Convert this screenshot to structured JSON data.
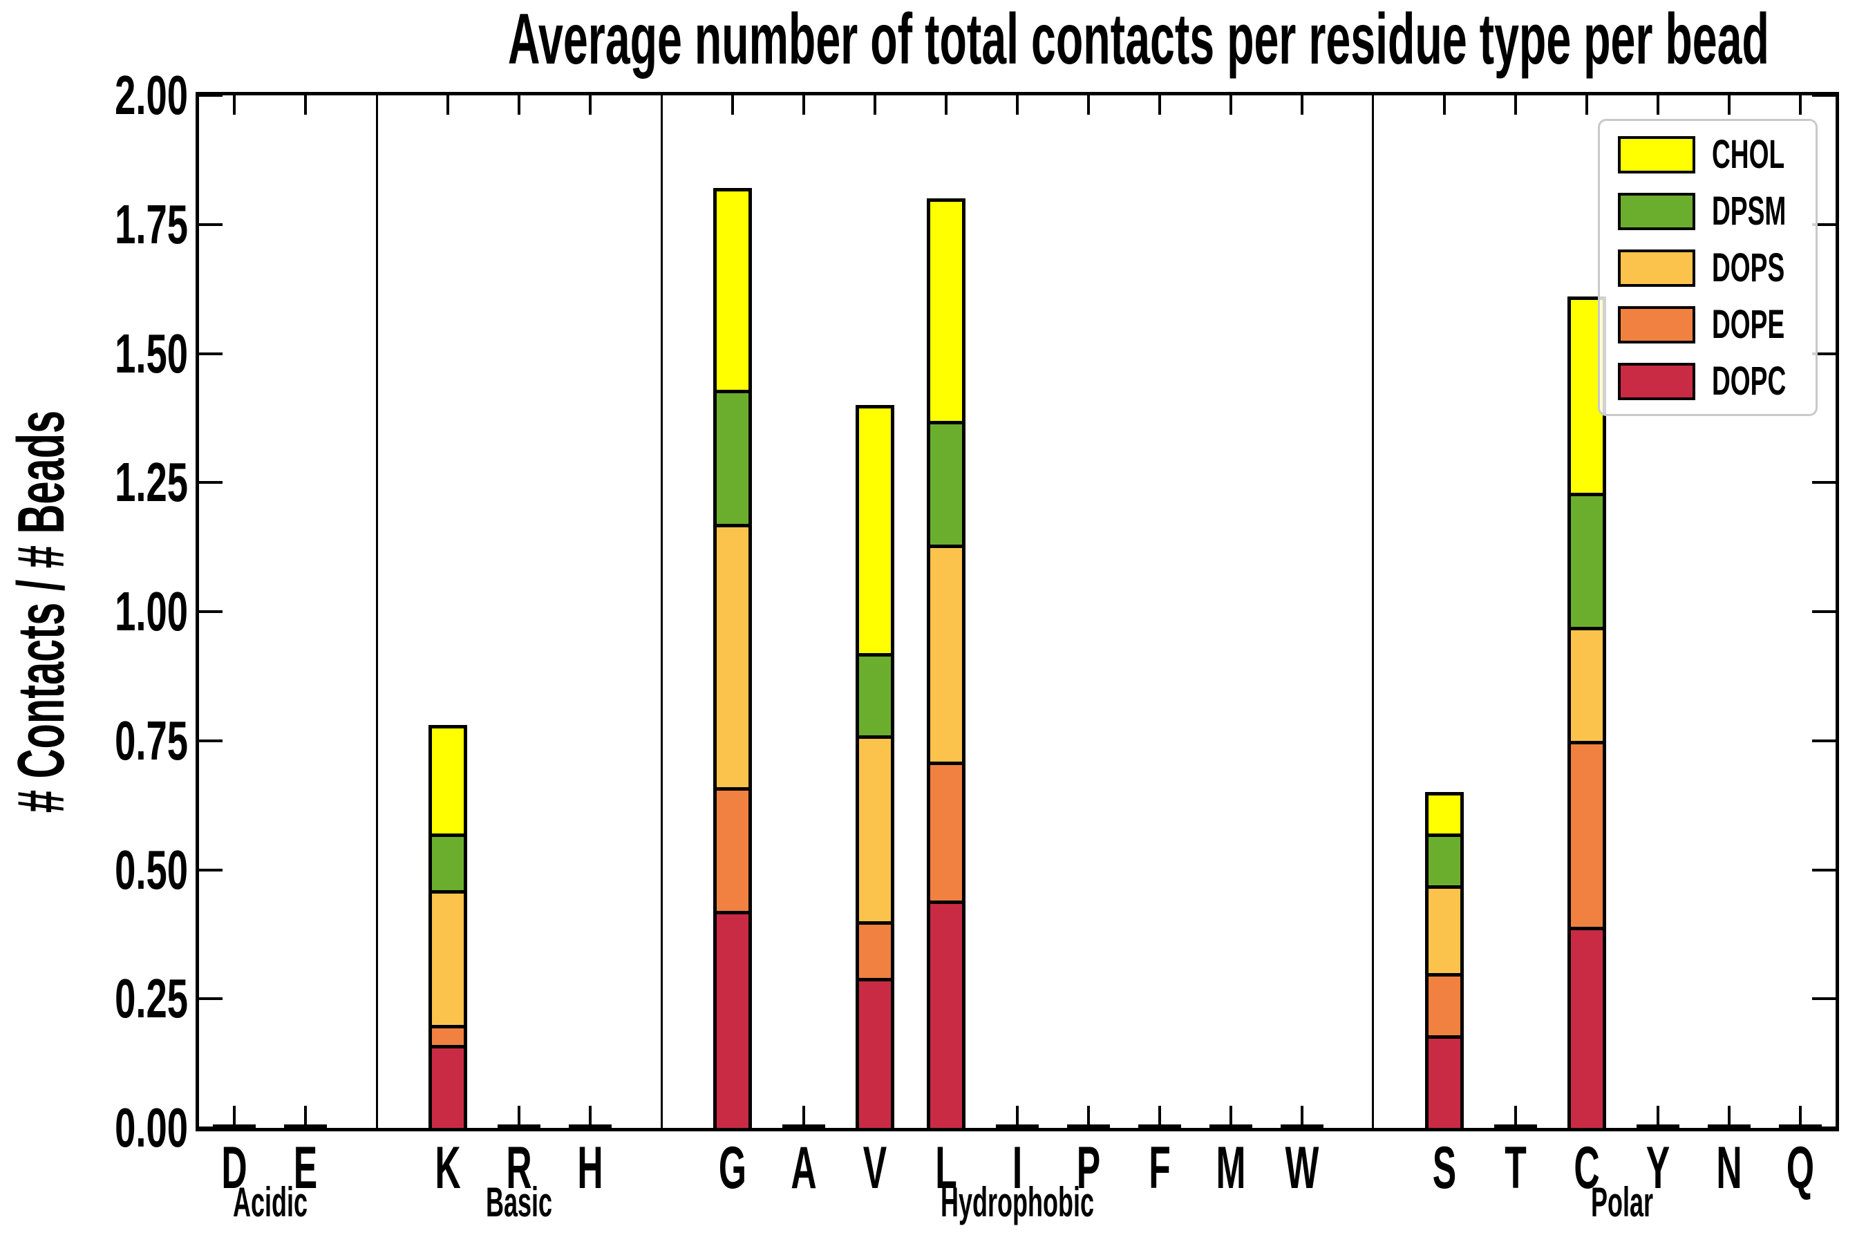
{
  "chart_data": {
    "type": "bar",
    "stacked": true,
    "title": "Average number of total contacts per residue type per bead",
    "ylabel": "# Contacts / # Beads",
    "xlabel": "",
    "ylim": [
      0,
      2
    ],
    "ytick_step": 0.25,
    "ytick_labels": [
      "0.00",
      "0.25",
      "0.50",
      "0.75",
      "1.00",
      "1.25",
      "1.50",
      "1.75",
      "2.00"
    ],
    "grid": false,
    "groups": [
      {
        "label": "Acidic",
        "residues": [
          "D",
          "E"
        ]
      },
      {
        "label": "Basic",
        "residues": [
          "K",
          "R",
          "H"
        ]
      },
      {
        "label": "Hydrophobic",
        "residues": [
          "G",
          "A",
          "V",
          "L",
          "I",
          "P",
          "F",
          "M",
          "W"
        ]
      },
      {
        "label": "Polar",
        "residues": [
          "S",
          "T",
          "C",
          "Y",
          "N",
          "Q"
        ]
      }
    ],
    "residues_flat": [
      "D",
      "E",
      "K",
      "R",
      "H",
      "G",
      "A",
      "V",
      "L",
      "I",
      "P",
      "F",
      "M",
      "W",
      "S",
      "T",
      "C",
      "Y",
      "N",
      "Q"
    ],
    "stack_order_bottom_to_top": [
      "DOPC",
      "DOPE",
      "DOPS",
      "DPSM",
      "CHOL"
    ],
    "series": [
      {
        "name": "DOPC",
        "color": "#C92B45",
        "values": [
          0,
          0,
          0.16,
          0,
          0,
          0.42,
          0,
          0.29,
          0.44,
          0,
          0,
          0,
          0,
          0,
          0.18,
          0,
          0.39,
          0,
          0,
          0
        ]
      },
      {
        "name": "DOPE",
        "color": "#F08140",
        "values": [
          0,
          0,
          0.04,
          0,
          0,
          0.24,
          0,
          0.11,
          0.27,
          0,
          0,
          0,
          0,
          0,
          0.12,
          0,
          0.36,
          0,
          0,
          0
        ]
      },
      {
        "name": "DOPS",
        "color": "#FBC34B",
        "values": [
          0,
          0,
          0.26,
          0,
          0,
          0.51,
          0,
          0.36,
          0.42,
          0,
          0,
          0,
          0,
          0,
          0.17,
          0,
          0.22,
          0,
          0,
          0
        ]
      },
      {
        "name": "DPSM",
        "color": "#6BAE2E",
        "values": [
          0,
          0,
          0.11,
          0,
          0,
          0.26,
          0,
          0.16,
          0.24,
          0,
          0,
          0,
          0,
          0,
          0.1,
          0,
          0.26,
          0,
          0,
          0
        ]
      },
      {
        "name": "CHOL",
        "color": "#FFFF00",
        "values": [
          0,
          0,
          0.21,
          0,
          0,
          0.39,
          0,
          0.48,
          0.43,
          0,
          0,
          0,
          0,
          0,
          0.08,
          0,
          0.38,
          0,
          0,
          0
        ]
      }
    ],
    "bar_totals": {
      "K": 0.78,
      "G": 1.82,
      "V": 1.4,
      "L": 1.8,
      "S": 0.65,
      "C": 1.61
    },
    "legend": {
      "position": "upper right",
      "entries": [
        "CHOL",
        "DPSM",
        "DOPS",
        "DOPE",
        "DOPC"
      ]
    },
    "colors": {
      "axis": "#000000",
      "legend_border": "#c9c9c9",
      "background": "#ffffff"
    }
  }
}
